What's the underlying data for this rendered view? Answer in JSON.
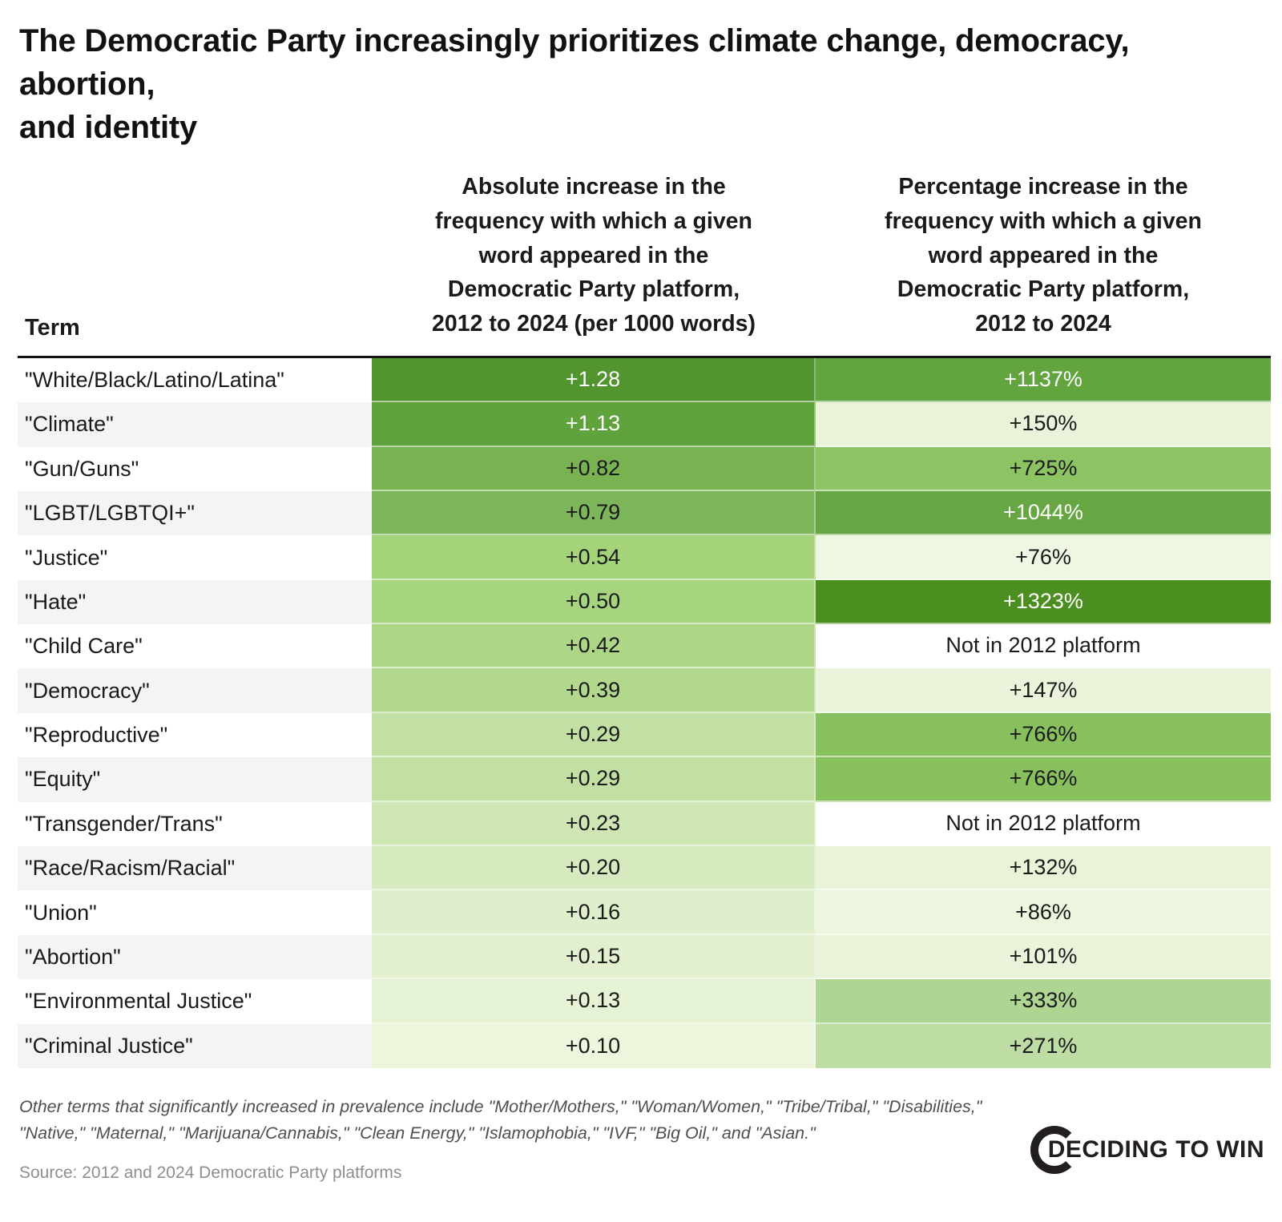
{
  "title": "The Democratic Party increasingly prioritizes climate change, democracy, abortion,\nand identity",
  "table": {
    "headers": {
      "term": "Term",
      "absolute": "Absolute increase in the\nfrequency with which a given\nword appeared in the\nDemocratic Party platform,\n2012 to 2024 (per 1000 words)",
      "percent": "Percentage increase in the\nfrequency with which a given\nword appeared in the\nDemocratic Party platform,\n2012 to 2024"
    },
    "rows": [
      {
        "term": "\"White/Black/Latino/Latina\"",
        "abs": "+1.28",
        "abs_bg": "#52952f",
        "abs_fg": "#ffffff",
        "pct": "+1137%",
        "pct_bg": "#62a43e",
        "pct_fg": "#ffffff"
      },
      {
        "term": "\"Climate\"",
        "abs": "+1.13",
        "abs_bg": "#60a23b",
        "abs_fg": "#ffffff",
        "pct": "+150%",
        "pct_bg": "#e9f3d9",
        "pct_fg": "#1a1a1a"
      },
      {
        "term": "\"Gun/Guns\"",
        "abs": "+0.82",
        "abs_bg": "#79b251",
        "abs_fg": "#1a1a1a",
        "pct": "+725%",
        "pct_bg": "#8dc463",
        "pct_fg": "#1a1a1a"
      },
      {
        "term": "\"LGBT/LGBTQI+\"",
        "abs": "+0.79",
        "abs_bg": "#7db55a",
        "abs_fg": "#1a1a1a",
        "pct": "+1044%",
        "pct_bg": "#66a743",
        "pct_fg": "#ffffff"
      },
      {
        "term": "\"Justice\"",
        "abs": "+0.54",
        "abs_bg": "#a4d37a",
        "abs_fg": "#1a1a1a",
        "pct": "+76%",
        "pct_bg": "#eff6e2",
        "pct_fg": "#1a1a1a"
      },
      {
        "term": "\"Hate\"",
        "abs": "+0.50",
        "abs_bg": "#a7d47f",
        "abs_fg": "#1a1a1a",
        "pct": "+1323%",
        "pct_bg": "#4b8f20",
        "pct_fg": "#ffffff"
      },
      {
        "term": "\"Child Care\"",
        "abs": "+0.42",
        "abs_bg": "#add687",
        "abs_fg": "#1a1a1a",
        "pct": "Not in 2012 platform",
        "pct_bg": "#ffffff",
        "pct_fg": "#1a1a1a"
      },
      {
        "term": "\"Democracy\"",
        "abs": "+0.39",
        "abs_bg": "#b2d88d",
        "abs_fg": "#1a1a1a",
        "pct": "+147%",
        "pct_bg": "#e9f4da",
        "pct_fg": "#1a1a1a"
      },
      {
        "term": "\"Reproductive\"",
        "abs": "+0.29",
        "abs_bg": "#c2e0a3",
        "abs_fg": "#1a1a1a",
        "pct": "+766%",
        "pct_bg": "#88c05d",
        "pct_fg": "#1a1a1a"
      },
      {
        "term": "\"Equity\"",
        "abs": "+0.29",
        "abs_bg": "#c2e0a3",
        "abs_fg": "#1a1a1a",
        "pct": "+766%",
        "pct_bg": "#88c05d",
        "pct_fg": "#1a1a1a"
      },
      {
        "term": "\"Transgender/Trans\"",
        "abs": "+0.23",
        "abs_bg": "#cfe6b4",
        "abs_fg": "#1a1a1a",
        "pct": "Not in 2012 platform",
        "pct_bg": "#ffffff",
        "pct_fg": "#1a1a1a"
      },
      {
        "term": "\"Race/Racism/Racial\"",
        "abs": "+0.20",
        "abs_bg": "#d7eabf",
        "abs_fg": "#1a1a1a",
        "pct": "+132%",
        "pct_bg": "#e8f3d8",
        "pct_fg": "#1a1a1a"
      },
      {
        "term": "\"Union\"",
        "abs": "+0.16",
        "abs_bg": "#dfeecb",
        "abs_fg": "#1a1a1a",
        "pct": "+86%",
        "pct_bg": "#edf5de",
        "pct_fg": "#1a1a1a"
      },
      {
        "term": "\"Abortion\"",
        "abs": "+0.15",
        "abs_bg": "#e2f0cf",
        "abs_fg": "#1a1a1a",
        "pct": "+101%",
        "pct_bg": "#eaf4db",
        "pct_fg": "#1a1a1a"
      },
      {
        "term": "\"Environmental Justice\"",
        "abs": "+0.13",
        "abs_bg": "#e6f2d4",
        "abs_fg": "#1a1a1a",
        "pct": "+333%",
        "pct_bg": "#aed591",
        "pct_fg": "#1a1a1a"
      },
      {
        "term": "\"Criminal Justice\"",
        "abs": "+0.10",
        "abs_bg": "#edf5dd",
        "abs_fg": "#1a1a1a",
        "pct": "+271%",
        "pct_bg": "#bedda4",
        "pct_fg": "#1a1a1a"
      }
    ]
  },
  "footer": {
    "note": "Other terms that significantly increased in prevalence include \"Mother/Mothers,\" \"Woman/Women,\" \"Tribe/Tribal,\" \"Disabilities,\"\n\"Native,\" \"Maternal,\" \"Marijuana/Cannabis,\" \"Clean Energy,\" \"Islamophobia,\" \"IVF,\" \"Big Oil,\" and \"Asian.\"",
    "source": "Source: 2012 and 2024 Democratic Party platforms",
    "logo_text": "DECIDING TO WIN"
  },
  "colors": {
    "scale_dark": "#4b8f20",
    "scale_light": "#eff6e2",
    "header_rule": "#141414",
    "alt_row_bg": "#f4f4f4",
    "note_text": "#4f4f4f",
    "source_text": "#8e8e8e",
    "logo": "#221e1f"
  },
  "chart_data": {
    "type": "table",
    "title": "The Democratic Party increasingly prioritizes climate change, democracy, abortion, and identity",
    "columns": [
      "Term",
      "Absolute increase in the frequency with which a given word appeared in the Democratic Party platform, 2012 to 2024 (per 1000 words)",
      "Percentage increase in the frequency with which a given word appeared in the Democratic Party platform, 2012 to 2024"
    ],
    "rows": [
      [
        "\"White/Black/Latino/Latina\"",
        "+1.28",
        "+1137%"
      ],
      [
        "\"Climate\"",
        "+1.13",
        "+150%"
      ],
      [
        "\"Gun/Guns\"",
        "+0.82",
        "+725%"
      ],
      [
        "\"LGBT/LGBTQI+\"",
        "+0.79",
        "+1044%"
      ],
      [
        "\"Justice\"",
        "+0.54",
        "+76%"
      ],
      [
        "\"Hate\"",
        "+0.50",
        "+1323%"
      ],
      [
        "\"Child Care\"",
        "+0.42",
        "Not in 2012 platform"
      ],
      [
        "\"Democracy\"",
        "+0.39",
        "+147%"
      ],
      [
        "\"Reproductive\"",
        "+0.29",
        "+766%"
      ],
      [
        "\"Equity\"",
        "+0.29",
        "+766%"
      ],
      [
        "\"Transgender/Trans\"",
        "+0.23",
        "Not in 2012 platform"
      ],
      [
        "\"Race/Racism/Racial\"",
        "+0.20",
        "+132%"
      ],
      [
        "\"Union\"",
        "+0.16",
        "+86%"
      ],
      [
        "\"Abortion\"",
        "+0.15",
        "+101%"
      ],
      [
        "\"Environmental Justice\"",
        "+0.13",
        "+333%"
      ],
      [
        "\"Criminal Justice\"",
        "+0.10",
        "+271%"
      ]
    ],
    "layout": "heatmap-shaded table; darker green = larger increase; each numeric column shaded on its own scale"
  }
}
